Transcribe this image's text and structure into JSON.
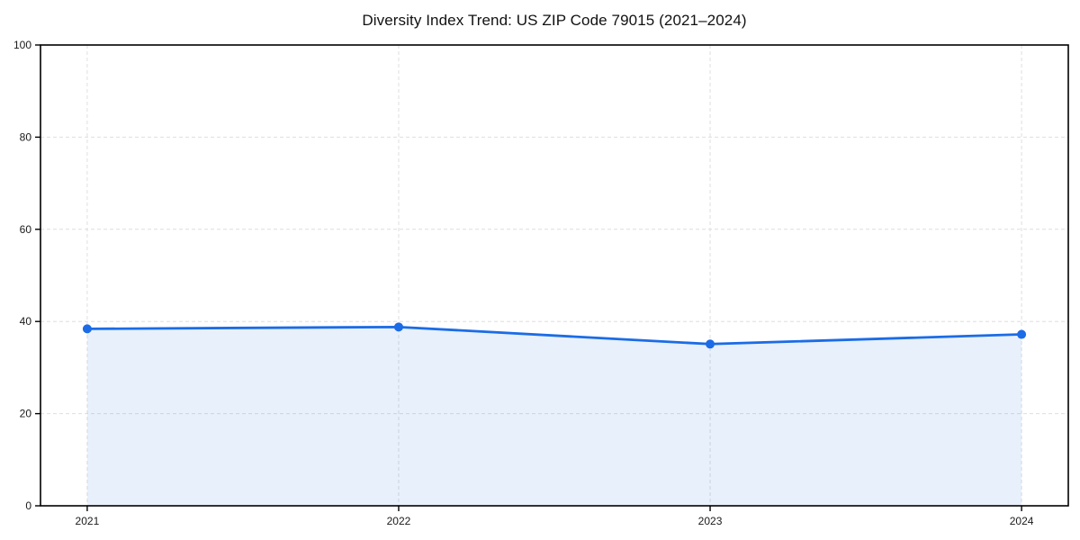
{
  "chart_data": {
    "type": "line",
    "title": "Diversity Index Trend: US ZIP Code 79015 (2021–2024)",
    "x": [
      "2021",
      "2022",
      "2023",
      "2024"
    ],
    "series": [
      {
        "name": "Diversity Index",
        "values": [
          38.4,
          38.8,
          35.1,
          37.2
        ]
      }
    ],
    "ylim": [
      0,
      100
    ],
    "yticks": [
      0,
      20,
      40,
      60,
      80,
      100
    ],
    "grid": "dashed",
    "legend": "none",
    "area_fill": true,
    "styles": {
      "line_color": "#1b6ce6",
      "marker_color": "#1b6ce6",
      "fill_color": "rgba(27,108,230,0.10)",
      "grid_color": "#dedede",
      "axis_color": "#000000",
      "tick_label_color": "#1a1a1a",
      "background": "#ffffff"
    }
  }
}
